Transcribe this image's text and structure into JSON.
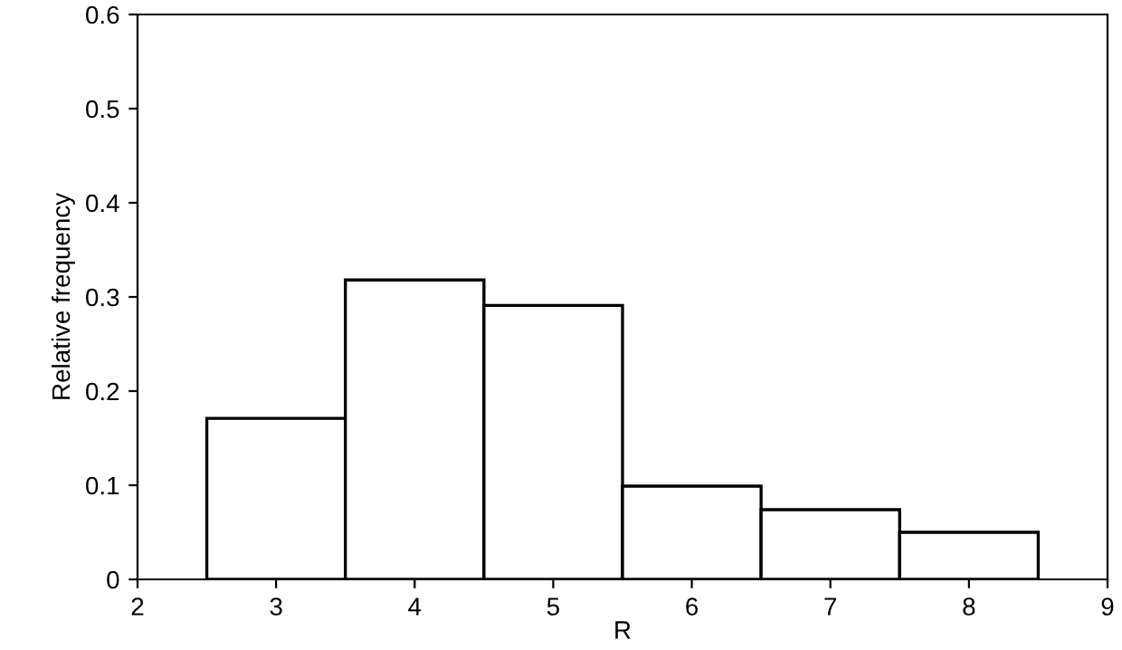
{
  "chart_data": {
    "type": "histogram",
    "xlabel": "R",
    "ylabel": "Relative frequency",
    "bins": [
      2.5,
      3.5,
      4.5,
      5.5,
      6.5,
      7.5,
      8.5
    ],
    "values": [
      0.171,
      0.318,
      0.291,
      0.099,
      0.074,
      0.05
    ],
    "color": "#ffffff",
    "xlim": [
      2,
      9
    ],
    "xticks": [
      2,
      3,
      4,
      5,
      6,
      7,
      8,
      9
    ],
    "ylim": [
      0,
      0.6
    ],
    "yticks": [
      0,
      0.1,
      0.2,
      0.3,
      0.4,
      0.5,
      0.6
    ],
    "grid": false
  }
}
